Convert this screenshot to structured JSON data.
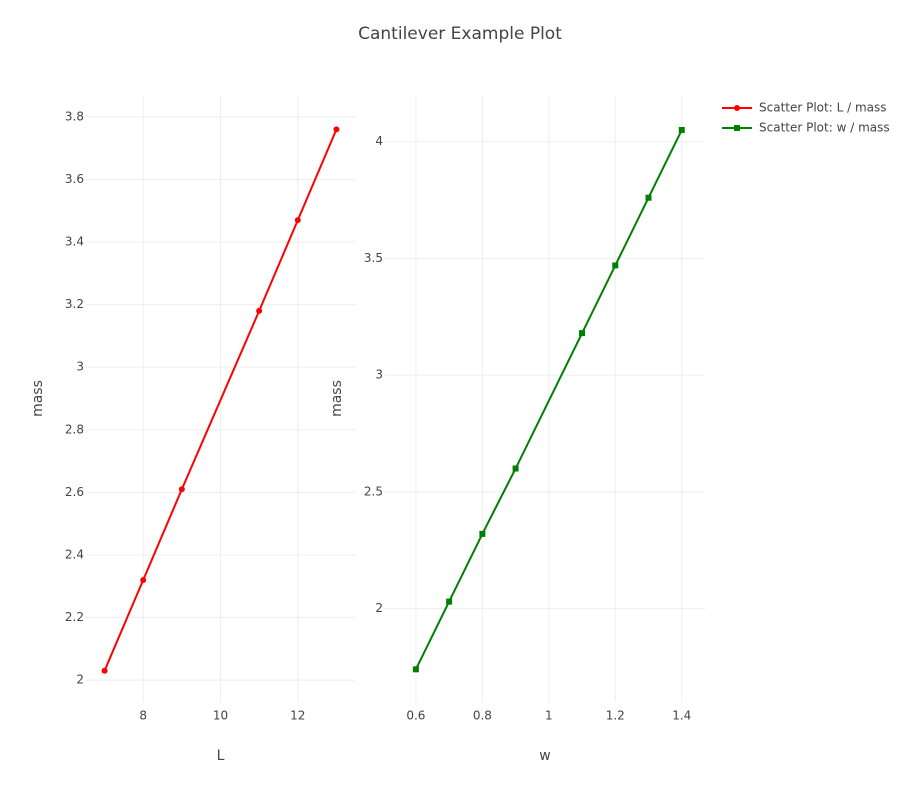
{
  "chart_data": [
    {
      "type": "line",
      "title": "Cantilever Example Plot",
      "xlabel": "L",
      "ylabel": "mass",
      "x": [
        7,
        8,
        9,
        11,
        12,
        13
      ],
      "series": [
        {
          "name": "Scatter Plot: L / mass",
          "color": "#ff0000",
          "marker": "circle",
          "values": [
            2.03,
            2.32,
            2.61,
            3.18,
            3.47,
            3.76
          ]
        }
      ],
      "xlim": [
        6.52,
        13.48
      ],
      "ylim": [
        1.93,
        3.87
      ],
      "xticks": [
        8,
        10,
        12
      ],
      "yticks": [
        2,
        2.2,
        2.4,
        2.6,
        2.8,
        3,
        3.2,
        3.4,
        3.6,
        3.8
      ],
      "grid": true,
      "legend": "top-right"
    },
    {
      "type": "line",
      "xlabel": "w",
      "ylabel": "mass",
      "x": [
        0.6,
        0.7,
        0.8,
        0.9,
        1.1,
        1.2,
        1.3,
        1.4
      ],
      "series": [
        {
          "name": "Scatter Plot: w / mass",
          "color": "#008000",
          "marker": "square",
          "values": [
            1.74,
            2.03,
            2.32,
            2.6,
            3.18,
            3.47,
            3.76,
            4.05
          ]
        }
      ],
      "xlim": [
        0.507,
        1.47
      ],
      "ylim": [
        1.6,
        4.2
      ],
      "xticks": [
        0.6,
        0.8,
        1,
        1.2,
        1.4
      ],
      "yticks": [
        2,
        2.5,
        3,
        3.5,
        4
      ],
      "grid": true,
      "legend": "top-right"
    }
  ]
}
